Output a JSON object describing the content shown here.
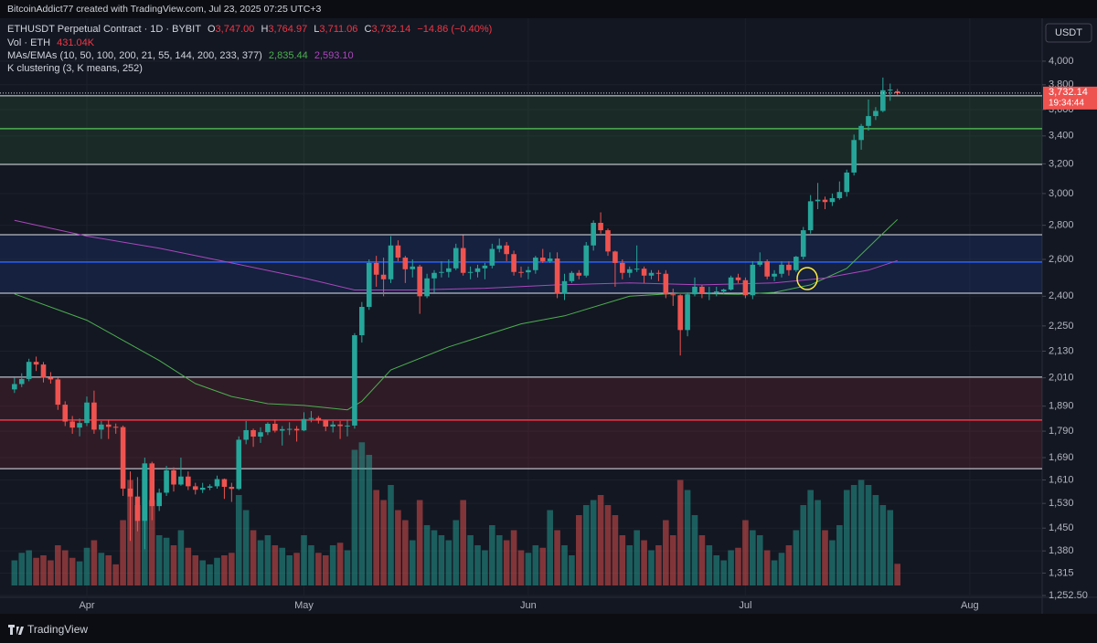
{
  "chart_data": {
    "type": "candlestick",
    "caption": "BitcoinAddict77 created with TradingView.com, Jul 23, 2025 07:25 UTC+3",
    "legend": {
      "symbol": "ETHUSDT Perpetual Contract · 1D · BYBIT",
      "o_label": "O",
      "open": "3,747.00",
      "h_label": "H",
      "high": "3,764.97",
      "l_label": "L",
      "low": "3,711.06",
      "c_label": "C",
      "close": "3,732.14",
      "change": "−14.86 (−0.40%)",
      "vol_name": "Vol · ETH",
      "volume": "431.04K",
      "ma_name": "MAs/EMAs (10, 50, 100, 200, 21, 55, 144, 200, 233, 377)",
      "ma_values": [
        "2,835.44",
        "2,593.10"
      ],
      "kc_name": "K clustering (3, K means, 252)"
    },
    "currency": "USDT",
    "price_label": "3,732.14",
    "countdown": "19:34:44",
    "brand": "TradingView",
    "log_scale": true,
    "grid": true,
    "up_color": "#26a69a",
    "down_color": "#ef5350",
    "ylim": [
      1223,
      4356
    ],
    "yticks": [
      {
        "value": 4000,
        "label": "4,000"
      },
      {
        "value": 3800,
        "label": "3,800"
      },
      {
        "value": 3600,
        "label": "3,600"
      },
      {
        "value": 3400,
        "label": "3,400"
      },
      {
        "value": 3200,
        "label": "3,200"
      },
      {
        "value": 3000,
        "label": "3,000"
      },
      {
        "value": 2800,
        "label": "2,800"
      },
      {
        "value": 2600,
        "label": "2,600"
      },
      {
        "value": 2400,
        "label": "2,400"
      },
      {
        "value": 2250,
        "label": "2,250"
      },
      {
        "value": 2130,
        "label": "2,130"
      },
      {
        "value": 2010,
        "label": "2,010"
      },
      {
        "value": 1890,
        "label": "1,890"
      },
      {
        "value": 1790,
        "label": "1,790"
      },
      {
        "value": 1690,
        "label": "1,690"
      },
      {
        "value": 1610,
        "label": "1,610"
      },
      {
        "value": 1530,
        "label": "1,530"
      },
      {
        "value": 1450,
        "label": "1,450"
      },
      {
        "value": 1380,
        "label": "1,380"
      },
      {
        "value": 1315,
        "label": "1,315"
      },
      {
        "value": 1252.5,
        "label": "1,252.50"
      }
    ],
    "xlim": [
      -2,
      142
    ],
    "xticks": [
      {
        "value": 10,
        "label": "Apr"
      },
      {
        "value": 40,
        "label": "May"
      },
      {
        "value": 71,
        "label": "Jun"
      },
      {
        "value": 101,
        "label": "Jul"
      },
      {
        "value": 132,
        "label": "Aug"
      }
    ],
    "vlim": [
      0,
      3200000
    ],
    "candles": [
      [
        1960,
        2010,
        1945,
        1983
      ],
      [
        1983,
        2030,
        1970,
        2005
      ],
      [
        2005,
        2095,
        1995,
        2081
      ],
      [
        2081,
        2105,
        2040,
        2069
      ],
      [
        2069,
        2080,
        1990,
        2011
      ],
      [
        2011,
        2035,
        1985,
        2003
      ],
      [
        2003,
        2010,
        1875,
        1896
      ],
      [
        1896,
        1910,
        1810,
        1828
      ],
      [
        1828,
        1850,
        1780,
        1804
      ],
      [
        1804,
        1840,
        1770,
        1822
      ],
      [
        1822,
        1930,
        1810,
        1905
      ],
      [
        1905,
        1955,
        1780,
        1796
      ],
      [
        1796,
        1830,
        1760,
        1816
      ],
      [
        1816,
        1835,
        1760,
        1807
      ],
      [
        1807,
        1820,
        1780,
        1806
      ],
      [
        1806,
        1812,
        1555,
        1580
      ],
      [
        1580,
        1640,
        1410,
        1553
      ],
      [
        1553,
        1620,
        1440,
        1473
      ],
      [
        1473,
        1690,
        1385,
        1669
      ],
      [
        1669,
        1675,
        1475,
        1521
      ],
      [
        1521,
        1580,
        1505,
        1566
      ],
      [
        1566,
        1660,
        1555,
        1644
      ],
      [
        1644,
        1655,
        1570,
        1594
      ],
      [
        1594,
        1690,
        1590,
        1622
      ],
      [
        1622,
        1640,
        1575,
        1588
      ],
      [
        1588,
        1600,
        1560,
        1576
      ],
      [
        1576,
        1600,
        1565,
        1583
      ],
      [
        1583,
        1595,
        1575,
        1588
      ],
      [
        1588,
        1625,
        1580,
        1613
      ],
      [
        1613,
        1615,
        1545,
        1586
      ],
      [
        1586,
        1600,
        1535,
        1579
      ],
      [
        1579,
        1770,
        1575,
        1757
      ],
      [
        1757,
        1830,
        1740,
        1794
      ],
      [
        1794,
        1800,
        1730,
        1769
      ],
      [
        1769,
        1805,
        1745,
        1786
      ],
      [
        1786,
        1825,
        1775,
        1819
      ],
      [
        1819,
        1835,
        1785,
        1792
      ],
      [
        1792,
        1810,
        1735,
        1798
      ],
      [
        1798,
        1825,
        1775,
        1799
      ],
      [
        1799,
        1810,
        1750,
        1793
      ],
      [
        1793,
        1865,
        1790,
        1838
      ],
      [
        1838,
        1870,
        1825,
        1842
      ],
      [
        1842,
        1850,
        1820,
        1832
      ],
      [
        1832,
        1835,
        1790,
        1808
      ],
      [
        1808,
        1830,
        1785,
        1816
      ],
      [
        1816,
        1830,
        1760,
        1810
      ],
      [
        1810,
        1835,
        1770,
        1812
      ],
      [
        1812,
        2215,
        1800,
        2205
      ],
      [
        2205,
        2370,
        2170,
        2345
      ],
      [
        2345,
        2600,
        2330,
        2580
      ],
      [
        2580,
        2620,
        2450,
        2515
      ],
      [
        2515,
        2610,
        2400,
        2490
      ],
      [
        2490,
        2735,
        2470,
        2680
      ],
      [
        2680,
        2710,
        2590,
        2610
      ],
      [
        2610,
        2620,
        2470,
        2545
      ],
      [
        2545,
        2600,
        2500,
        2560
      ],
      [
        2560,
        2570,
        2310,
        2400
      ],
      [
        2400,
        2520,
        2390,
        2495
      ],
      [
        2495,
        2540,
        2420,
        2525
      ],
      [
        2525,
        2590,
        2500,
        2530
      ],
      [
        2530,
        2600,
        2500,
        2550
      ],
      [
        2550,
        2690,
        2540,
        2665
      ],
      [
        2665,
        2740,
        2510,
        2525
      ],
      [
        2525,
        2560,
        2490,
        2530
      ],
      [
        2530,
        2570,
        2500,
        2550
      ],
      [
        2550,
        2580,
        2490,
        2565
      ],
      [
        2565,
        2690,
        2550,
        2660
      ],
      [
        2660,
        2720,
        2640,
        2680
      ],
      [
        2680,
        2700,
        2590,
        2630
      ],
      [
        2630,
        2650,
        2510,
        2530
      ],
      [
        2530,
        2560,
        2500,
        2528
      ],
      [
        2528,
        2560,
        2490,
        2540
      ],
      [
        2540,
        2620,
        2520,
        2610
      ],
      [
        2610,
        2660,
        2580,
        2590
      ],
      [
        2590,
        2640,
        2580,
        2605
      ],
      [
        2605,
        2640,
        2390,
        2415
      ],
      [
        2415,
        2520,
        2380,
        2480
      ],
      [
        2480,
        2535,
        2470,
        2525
      ],
      [
        2525,
        2540,
        2490,
        2510
      ],
      [
        2510,
        2700,
        2500,
        2680
      ],
      [
        2680,
        2830,
        2650,
        2815
      ],
      [
        2815,
        2880,
        2750,
        2770
      ],
      [
        2770,
        2780,
        2620,
        2645
      ],
      [
        2645,
        2650,
        2450,
        2580
      ],
      [
        2580,
        2600,
        2490,
        2525
      ],
      [
        2525,
        2560,
        2500,
        2545
      ],
      [
        2545,
        2680,
        2530,
        2548
      ],
      [
        2548,
        2560,
        2470,
        2510
      ],
      [
        2510,
        2540,
        2490,
        2525
      ],
      [
        2525,
        2540,
        2480,
        2520
      ],
      [
        2520,
        2540,
        2390,
        2410
      ],
      [
        2410,
        2440,
        2350,
        2405
      ],
      [
        2405,
        2410,
        2110,
        2230
      ],
      [
        2230,
        2420,
        2200,
        2410
      ],
      [
        2410,
        2500,
        2400,
        2450
      ],
      [
        2450,
        2460,
        2390,
        2415
      ],
      [
        2415,
        2450,
        2380,
        2420
      ],
      [
        2420,
        2450,
        2400,
        2425
      ],
      [
        2425,
        2440,
        2410,
        2435
      ],
      [
        2435,
        2510,
        2430,
        2500
      ],
      [
        2500,
        2520,
        2470,
        2485
      ],
      [
        2485,
        2500,
        2390,
        2405
      ],
      [
        2405,
        2590,
        2385,
        2570
      ],
      [
        2570,
        2640,
        2560,
        2590
      ],
      [
        2590,
        2600,
        2490,
        2505
      ],
      [
        2505,
        2540,
        2480,
        2520
      ],
      [
        2520,
        2590,
        2500,
        2570
      ],
      [
        2570,
        2590,
        2510,
        2540
      ],
      [
        2540,
        2620,
        2530,
        2615
      ],
      [
        2615,
        2790,
        2600,
        2770
      ],
      [
        2770,
        2990,
        2750,
        2950
      ],
      [
        2950,
        3070,
        2900,
        2960
      ],
      [
        2960,
        2980,
        2900,
        2945
      ],
      [
        2945,
        3000,
        2920,
        2970
      ],
      [
        2970,
        3080,
        2960,
        3010
      ],
      [
        3010,
        3160,
        2980,
        3140
      ],
      [
        3140,
        3410,
        3120,
        3370
      ],
      [
        3370,
        3490,
        3300,
        3475
      ],
      [
        3475,
        3680,
        3440,
        3550
      ],
      [
        3550,
        3620,
        3520,
        3590
      ],
      [
        3590,
        3860,
        3580,
        3755
      ],
      [
        3755,
        3810,
        3670,
        3760
      ],
      [
        3747,
        3764.97,
        3711.06,
        3732.14
      ]
    ],
    "volume": [
      500000,
      650000,
      700000,
      550000,
      600000,
      500000,
      800000,
      700000,
      550000,
      480000,
      750000,
      900000,
      650000,
      600000,
      420000,
      1300000,
      2100000,
      1600000,
      2300000,
      1700000,
      1000000,
      950000,
      800000,
      1100000,
      750000,
      600000,
      500000,
      420000,
      550000,
      600000,
      650000,
      1800000,
      1500000,
      1100000,
      900000,
      1000000,
      800000,
      750000,
      600000,
      650000,
      1000000,
      800000,
      650000,
      600000,
      800000,
      850000,
      700000,
      2700000,
      2850000,
      2600000,
      1900000,
      1700000,
      2000000,
      1500000,
      1300000,
      900000,
      1700000,
      1200000,
      1100000,
      1000000,
      900000,
      1300000,
      1700000,
      1000000,
      800000,
      700000,
      1200000,
      1000000,
      900000,
      1100000,
      700000,
      650000,
      800000,
      750000,
      1500000,
      1100000,
      800000,
      600000,
      1400000,
      1600000,
      1700000,
      1800000,
      1600000,
      1400000,
      1000000,
      800000,
      1100000,
      900000,
      700000,
      800000,
      1300000,
      1000000,
      2100000,
      1900000,
      1400000,
      1000000,
      800000,
      600000,
      500000,
      700000,
      750000,
      1300000,
      1100000,
      1000000,
      700000,
      500000,
      650000,
      800000,
      1100000,
      1600000,
      1900000,
      1700000,
      1100000,
      900000,
      1200000,
      1900000,
      2000000,
      2100000,
      2000000,
      1800000,
      1600000,
      1500000,
      431040
    ],
    "ma_series": [
      {
        "color": "#4caf50",
        "x": [
          0,
          10,
          20,
          25,
          30,
          35,
          40,
          46,
          48,
          52,
          60,
          70,
          76,
          85,
          92,
          100,
          105,
          110,
          115,
          119,
          122
        ],
        "values": [
          2412,
          2278,
          2087,
          1985,
          1930,
          1900,
          1893,
          1875,
          1910,
          2045,
          2150,
          2260,
          2300,
          2400,
          2416,
          2410,
          2420,
          2460,
          2550,
          2710,
          2835.44
        ]
      },
      {
        "color": "#ab47bc",
        "x": [
          0,
          10,
          20,
          30,
          40,
          47,
          55,
          65,
          75,
          85,
          95,
          105,
          112,
          118,
          122
        ],
        "values": [
          2830,
          2735,
          2664,
          2580,
          2497,
          2433,
          2433,
          2442,
          2460,
          2470,
          2460,
          2470,
          2497,
          2540,
          2593.1
        ]
      }
    ],
    "clusters": [
      {
        "top": 3710,
        "center": 3454,
        "bottom": 3196,
        "color": "#4caf50"
      },
      {
        "top": 2743,
        "center": 2585,
        "bottom": 2416,
        "color": "#2962ff"
      },
      {
        "top": 2013,
        "center": 1834,
        "bottom": 1650,
        "color": "#f23645"
      }
    ]
  }
}
